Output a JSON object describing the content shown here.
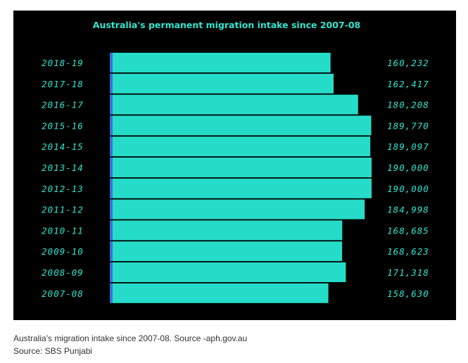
{
  "caption": {
    "text": "Australia's migration intake since 2007-08. Source -aph.gov.au",
    "source": "Source: SBS Punjabi"
  },
  "colors": {
    "background": "#000000",
    "bar": "#25dcc8",
    "bar_edge": "#3a6fd8",
    "text": "#2ee6cf"
  },
  "chart_data": {
    "type": "bar",
    "orientation": "horizontal",
    "title": "Australia's permanent migration intake since 2007-08",
    "xlabel": "",
    "ylabel": "",
    "categories": [
      "2018-19",
      "2017-18",
      "2016-17",
      "2015-16",
      "2014-15",
      "2013-14",
      "2012-13",
      "2011-12",
      "2010-11",
      "2009-10",
      "2008-09",
      "2007-08"
    ],
    "values": [
      160232,
      162417,
      180208,
      189770,
      189097,
      190000,
      190000,
      184998,
      168685,
      168623,
      171318,
      158630
    ],
    "value_labels": [
      "160,232",
      "162,417",
      "180,208",
      "189,770",
      "189,097",
      "190,000",
      "190,000",
      "184,998",
      "168,685",
      "168,623",
      "171,318",
      "158,630"
    ],
    "xlim": [
      0,
      190000
    ],
    "grid": false,
    "legend": "none"
  }
}
